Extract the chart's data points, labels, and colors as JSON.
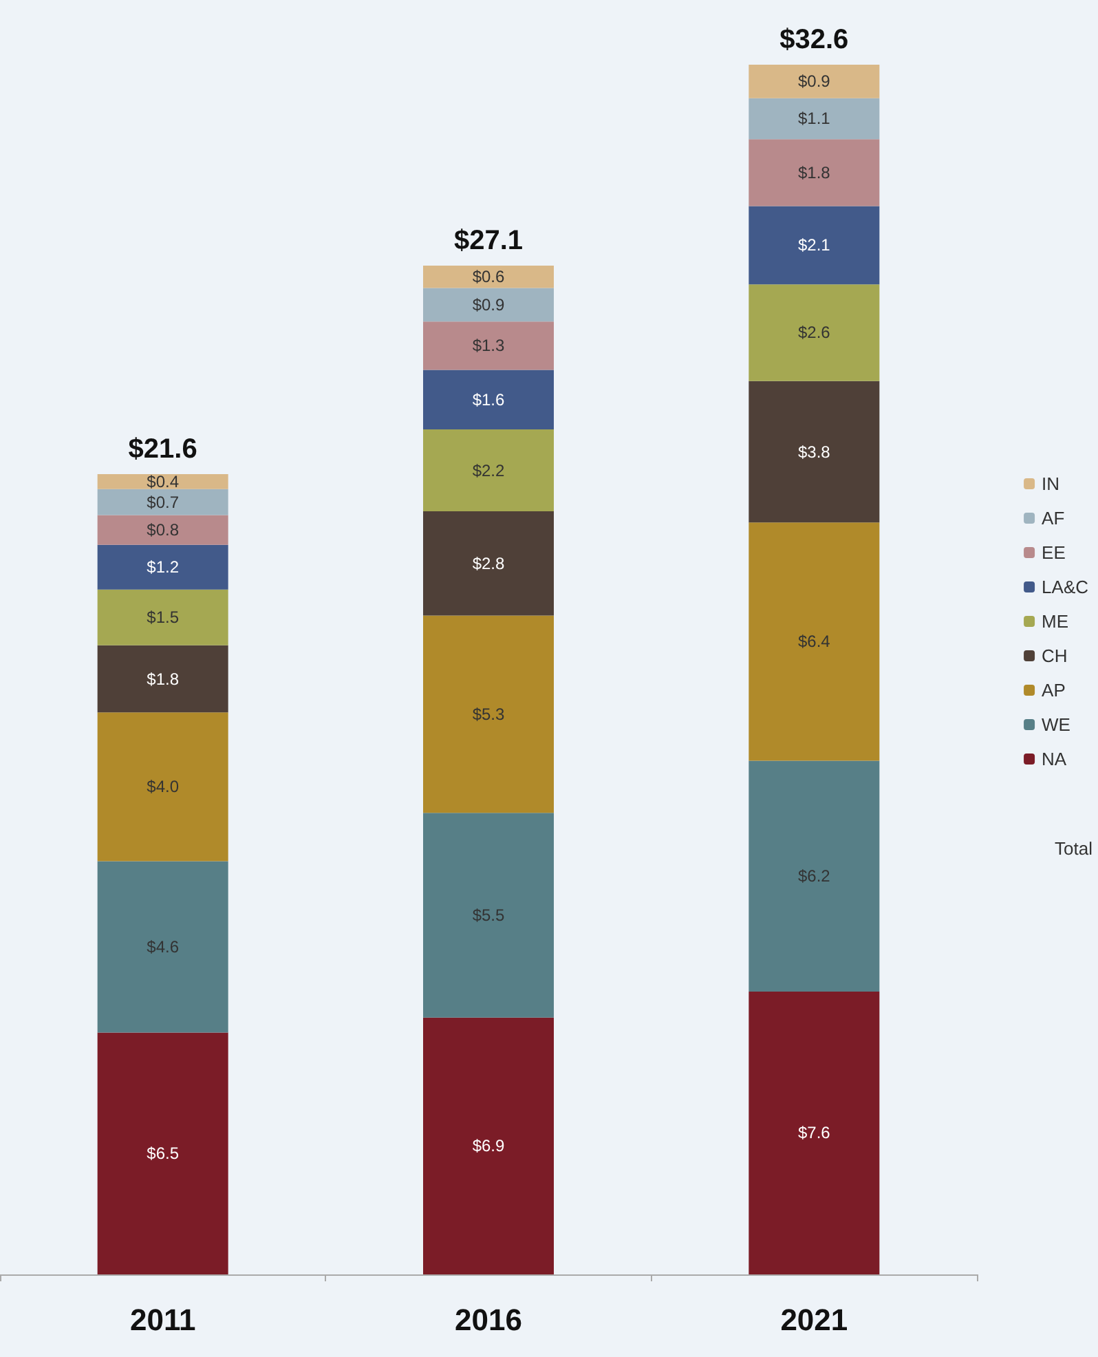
{
  "chart_data": {
    "type": "bar",
    "stacked": true,
    "categories": [
      "2011",
      "2016",
      "2021"
    ],
    "legend": "right",
    "series": [
      {
        "name": "NA",
        "color": "#7b1c27",
        "values": [
          6.5,
          6.9,
          7.6
        ],
        "value_labels": [
          "$6.5",
          "$6.9",
          "$7.6"
        ]
      },
      {
        "name": "WE",
        "color": "#577f87",
        "values": [
          4.6,
          5.5,
          6.2
        ],
        "value_labels": [
          "$4.6",
          "$5.5",
          "$6.2"
        ]
      },
      {
        "name": "AP",
        "color": "#b08a2a",
        "values": [
          4.0,
          5.3,
          6.4
        ],
        "value_labels": [
          "$4.0",
          "$5.3",
          "$6.4"
        ]
      },
      {
        "name": "CH",
        "color": "#4f4038",
        "values": [
          1.8,
          2.8,
          3.8
        ],
        "value_labels": [
          "$1.8",
          "$2.8",
          "$3.8"
        ]
      },
      {
        "name": "ME",
        "color": "#a5a852",
        "values": [
          1.5,
          2.2,
          2.6
        ],
        "value_labels": [
          "$1.5",
          "$2.2",
          "$2.6"
        ]
      },
      {
        "name": "LA&C",
        "color": "#425a8a",
        "values": [
          1.2,
          1.6,
          2.1
        ],
        "value_labels": [
          "$1.2",
          "$1.6",
          "$2.1"
        ]
      },
      {
        "name": "EE",
        "color": "#b88a8c",
        "values": [
          0.8,
          1.3,
          1.8
        ],
        "value_labels": [
          "$0.8",
          "$1.3",
          "$1.8"
        ]
      },
      {
        "name": "AF",
        "color": "#9fb4c0",
        "values": [
          0.7,
          0.9,
          1.1
        ],
        "value_labels": [
          "$0.7",
          "$0.9",
          "$1.1"
        ]
      },
      {
        "name": "IN",
        "color": "#d9b888",
        "values": [
          0.4,
          0.6,
          0.9
        ],
        "value_labels": [
          "$0.4",
          "$0.6",
          "$0.9"
        ]
      }
    ],
    "totals": [
      "$21.6",
      "$27.1",
      "$32.6"
    ],
    "annotations": [
      "Total"
    ]
  }
}
